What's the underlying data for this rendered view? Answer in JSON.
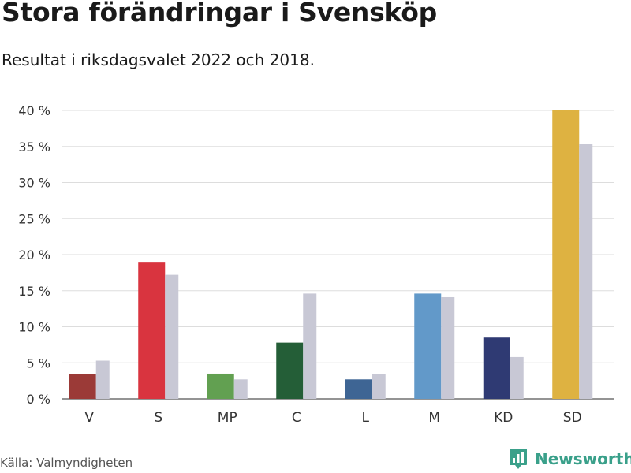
{
  "title": "Stora förändringar i Svensköp",
  "subtitle": "Resultat i riksdagsvalet 2022 och 2018.",
  "source": "Källa: Valmyndigheten",
  "brand": {
    "name": "Newsworthy",
    "icon": "bar-chart-icon",
    "color": "#3aa08a"
  },
  "chart_data": {
    "type": "bar",
    "title": "Stora förändringar i Svensköp",
    "subtitle": "Resultat i riksdagsvalet 2022 och 2018.",
    "categories": [
      "V",
      "S",
      "MP",
      "C",
      "L",
      "M",
      "KD",
      "SD"
    ],
    "series": [
      {
        "values": [
          3.4,
          19.0,
          3.5,
          7.8,
          2.7,
          14.6,
          8.5,
          40.0
        ],
        "colors": [
          "#9b3a37",
          "#d9343f",
          "#62a051",
          "#245e37",
          "#3e6594",
          "#6299c9",
          "#2f3a73",
          "#deb241"
        ]
      },
      {
        "values": [
          5.3,
          17.2,
          2.7,
          14.6,
          3.4,
          14.1,
          5.8,
          35.3
        ],
        "color": "#c8c8d5"
      }
    ],
    "yticks": [
      "0 %",
      "5 %",
      "10 %",
      "15 %",
      "20 %",
      "25 %",
      "30 %",
      "35 %",
      "40 %"
    ],
    "ylim": [
      0,
      40
    ],
    "grid": true,
    "legend": "none"
  }
}
